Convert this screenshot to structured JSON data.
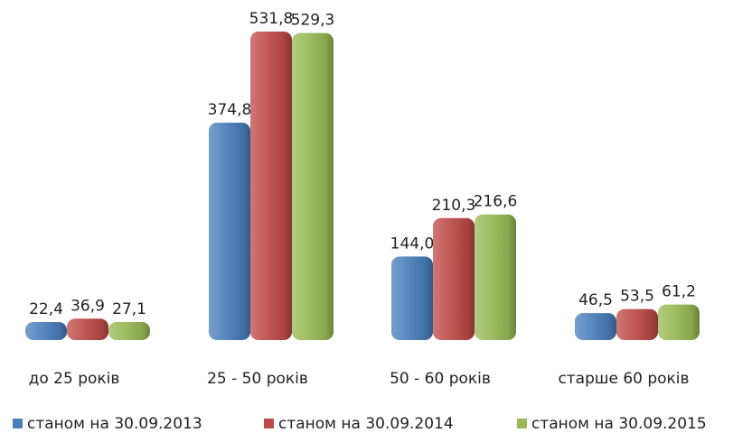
{
  "chart_data": {
    "type": "bar",
    "categories": [
      "до 25 років",
      "25 - 50 років",
      "50 - 60 років",
      "старше 60 років"
    ],
    "series": [
      {
        "name": "станом на 30.09.2013",
        "color": "#4a7ebb",
        "values": [
          22.4,
          374.8,
          144.0,
          46.5
        ],
        "value_labels": [
          "22,4",
          "374,8",
          "144,0",
          "46,5"
        ]
      },
      {
        "name": "станом на 30.09.2014",
        "color": "#be4b48",
        "values": [
          36.9,
          531.8,
          210.3,
          53.5
        ],
        "value_labels": [
          "36,9",
          "531,8",
          "210,3",
          "53,5"
        ]
      },
      {
        "name": "станом на 30.09.2015",
        "color": "#98b954",
        "values": [
          27.1,
          529.3,
          216.6,
          61.2
        ],
        "value_labels": [
          "27,1",
          "529,3",
          "216,6",
          "61,2"
        ]
      }
    ],
    "legend": "bottom"
  }
}
